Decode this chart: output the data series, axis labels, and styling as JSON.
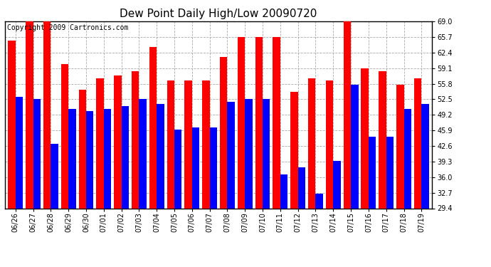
{
  "title": "Dew Point Daily High/Low 20090720",
  "copyright": "Copyright 2009 Cartronics.com",
  "dates": [
    "06/26",
    "06/27",
    "06/28",
    "06/29",
    "06/30",
    "07/01",
    "07/02",
    "07/03",
    "07/04",
    "07/05",
    "07/06",
    "07/07",
    "07/08",
    "07/09",
    "07/10",
    "07/11",
    "07/12",
    "07/13",
    "07/14",
    "07/15",
    "07/16",
    "07/17",
    "07/18",
    "07/19"
  ],
  "highs": [
    65.0,
    69.0,
    69.0,
    60.0,
    54.5,
    57.0,
    57.5,
    58.5,
    63.5,
    56.5,
    56.5,
    56.5,
    61.5,
    65.7,
    65.7,
    65.7,
    54.0,
    57.0,
    56.5,
    69.0,
    59.1,
    58.5,
    55.5,
    57.0
  ],
  "lows": [
    53.0,
    52.5,
    43.0,
    50.5,
    50.0,
    50.5,
    51.0,
    52.5,
    51.5,
    46.0,
    46.5,
    46.5,
    52.0,
    52.5,
    52.5,
    36.5,
    38.0,
    32.5,
    39.5,
    55.5,
    44.5,
    44.5,
    50.5,
    51.5
  ],
  "bar_width": 0.42,
  "high_color": "#ff0000",
  "low_color": "#0000ff",
  "bg_color": "#ffffff",
  "grid_color": "#aaaaaa",
  "ylim_min": 29.4,
  "ylim_max": 69.0,
  "yticks": [
    29.4,
    32.7,
    36.0,
    39.3,
    42.6,
    45.9,
    49.2,
    52.5,
    55.8,
    59.1,
    62.4,
    65.7,
    69.0
  ],
  "title_fontsize": 11,
  "tick_fontsize": 7,
  "copyright_fontsize": 7
}
